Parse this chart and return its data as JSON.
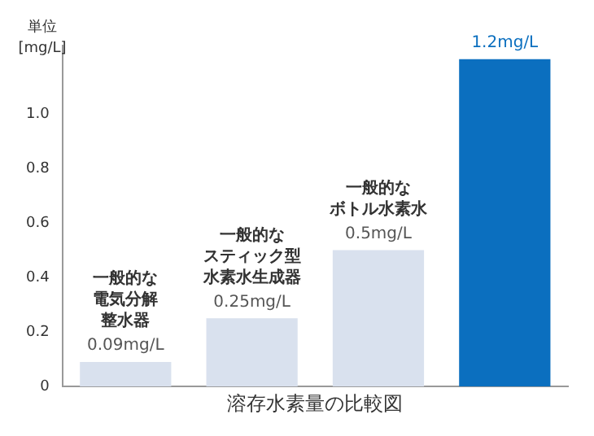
{
  "chart_data": {
    "type": "bar",
    "xlabel": "溶存水素量の比較図",
    "ylabel": "単位\n[mg/L]",
    "categories": [
      "一般的な電気分解整水器",
      "一般的なスティック型水素水生成器",
      "一般的なボトル水素水",
      null
    ],
    "values": [
      0.09,
      0.25,
      0.5,
      1.2
    ],
    "colors": [
      "#d9e1ee",
      "#d9e1ee",
      "#d9e1ee",
      "#0b6fbf"
    ],
    "value_labels": [
      "0.09mg/L",
      "0.25mg/L",
      "0.5mg/L",
      "1.2mg/L"
    ],
    "ylim": [
      0,
      1.25
    ],
    "yticks": [
      0,
      0.2,
      0.4,
      0.6,
      0.8,
      {
        "value": 1,
        "label": "1.0"
      }
    ],
    "grid": false
  }
}
